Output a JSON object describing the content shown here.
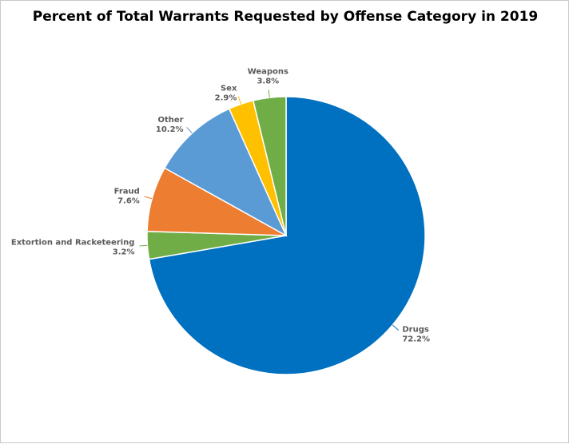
{
  "chart_data": {
    "type": "pie",
    "title": "Percent of Total Warrants Requested by Offense Category in 2019",
    "categories": [
      "Drugs",
      "Extortion and Racketeering",
      "Fraud",
      "Other",
      "Sex",
      "Weapons"
    ],
    "values": [
      72.2,
      3.2,
      7.6,
      10.2,
      2.9,
      3.8
    ],
    "value_labels": [
      "72.2%",
      "3.2%",
      "7.6%",
      "10.2%",
      "2.9%",
      "3.8%"
    ],
    "colors": [
      "#0070c0",
      "#70ad47",
      "#ed7d31",
      "#5b9bd5",
      "#ffc000",
      "#70ad47"
    ],
    "start": "12 o'clock",
    "direction": "clockwise",
    "legend": "none",
    "data_labels": "outside with leader lines"
  }
}
